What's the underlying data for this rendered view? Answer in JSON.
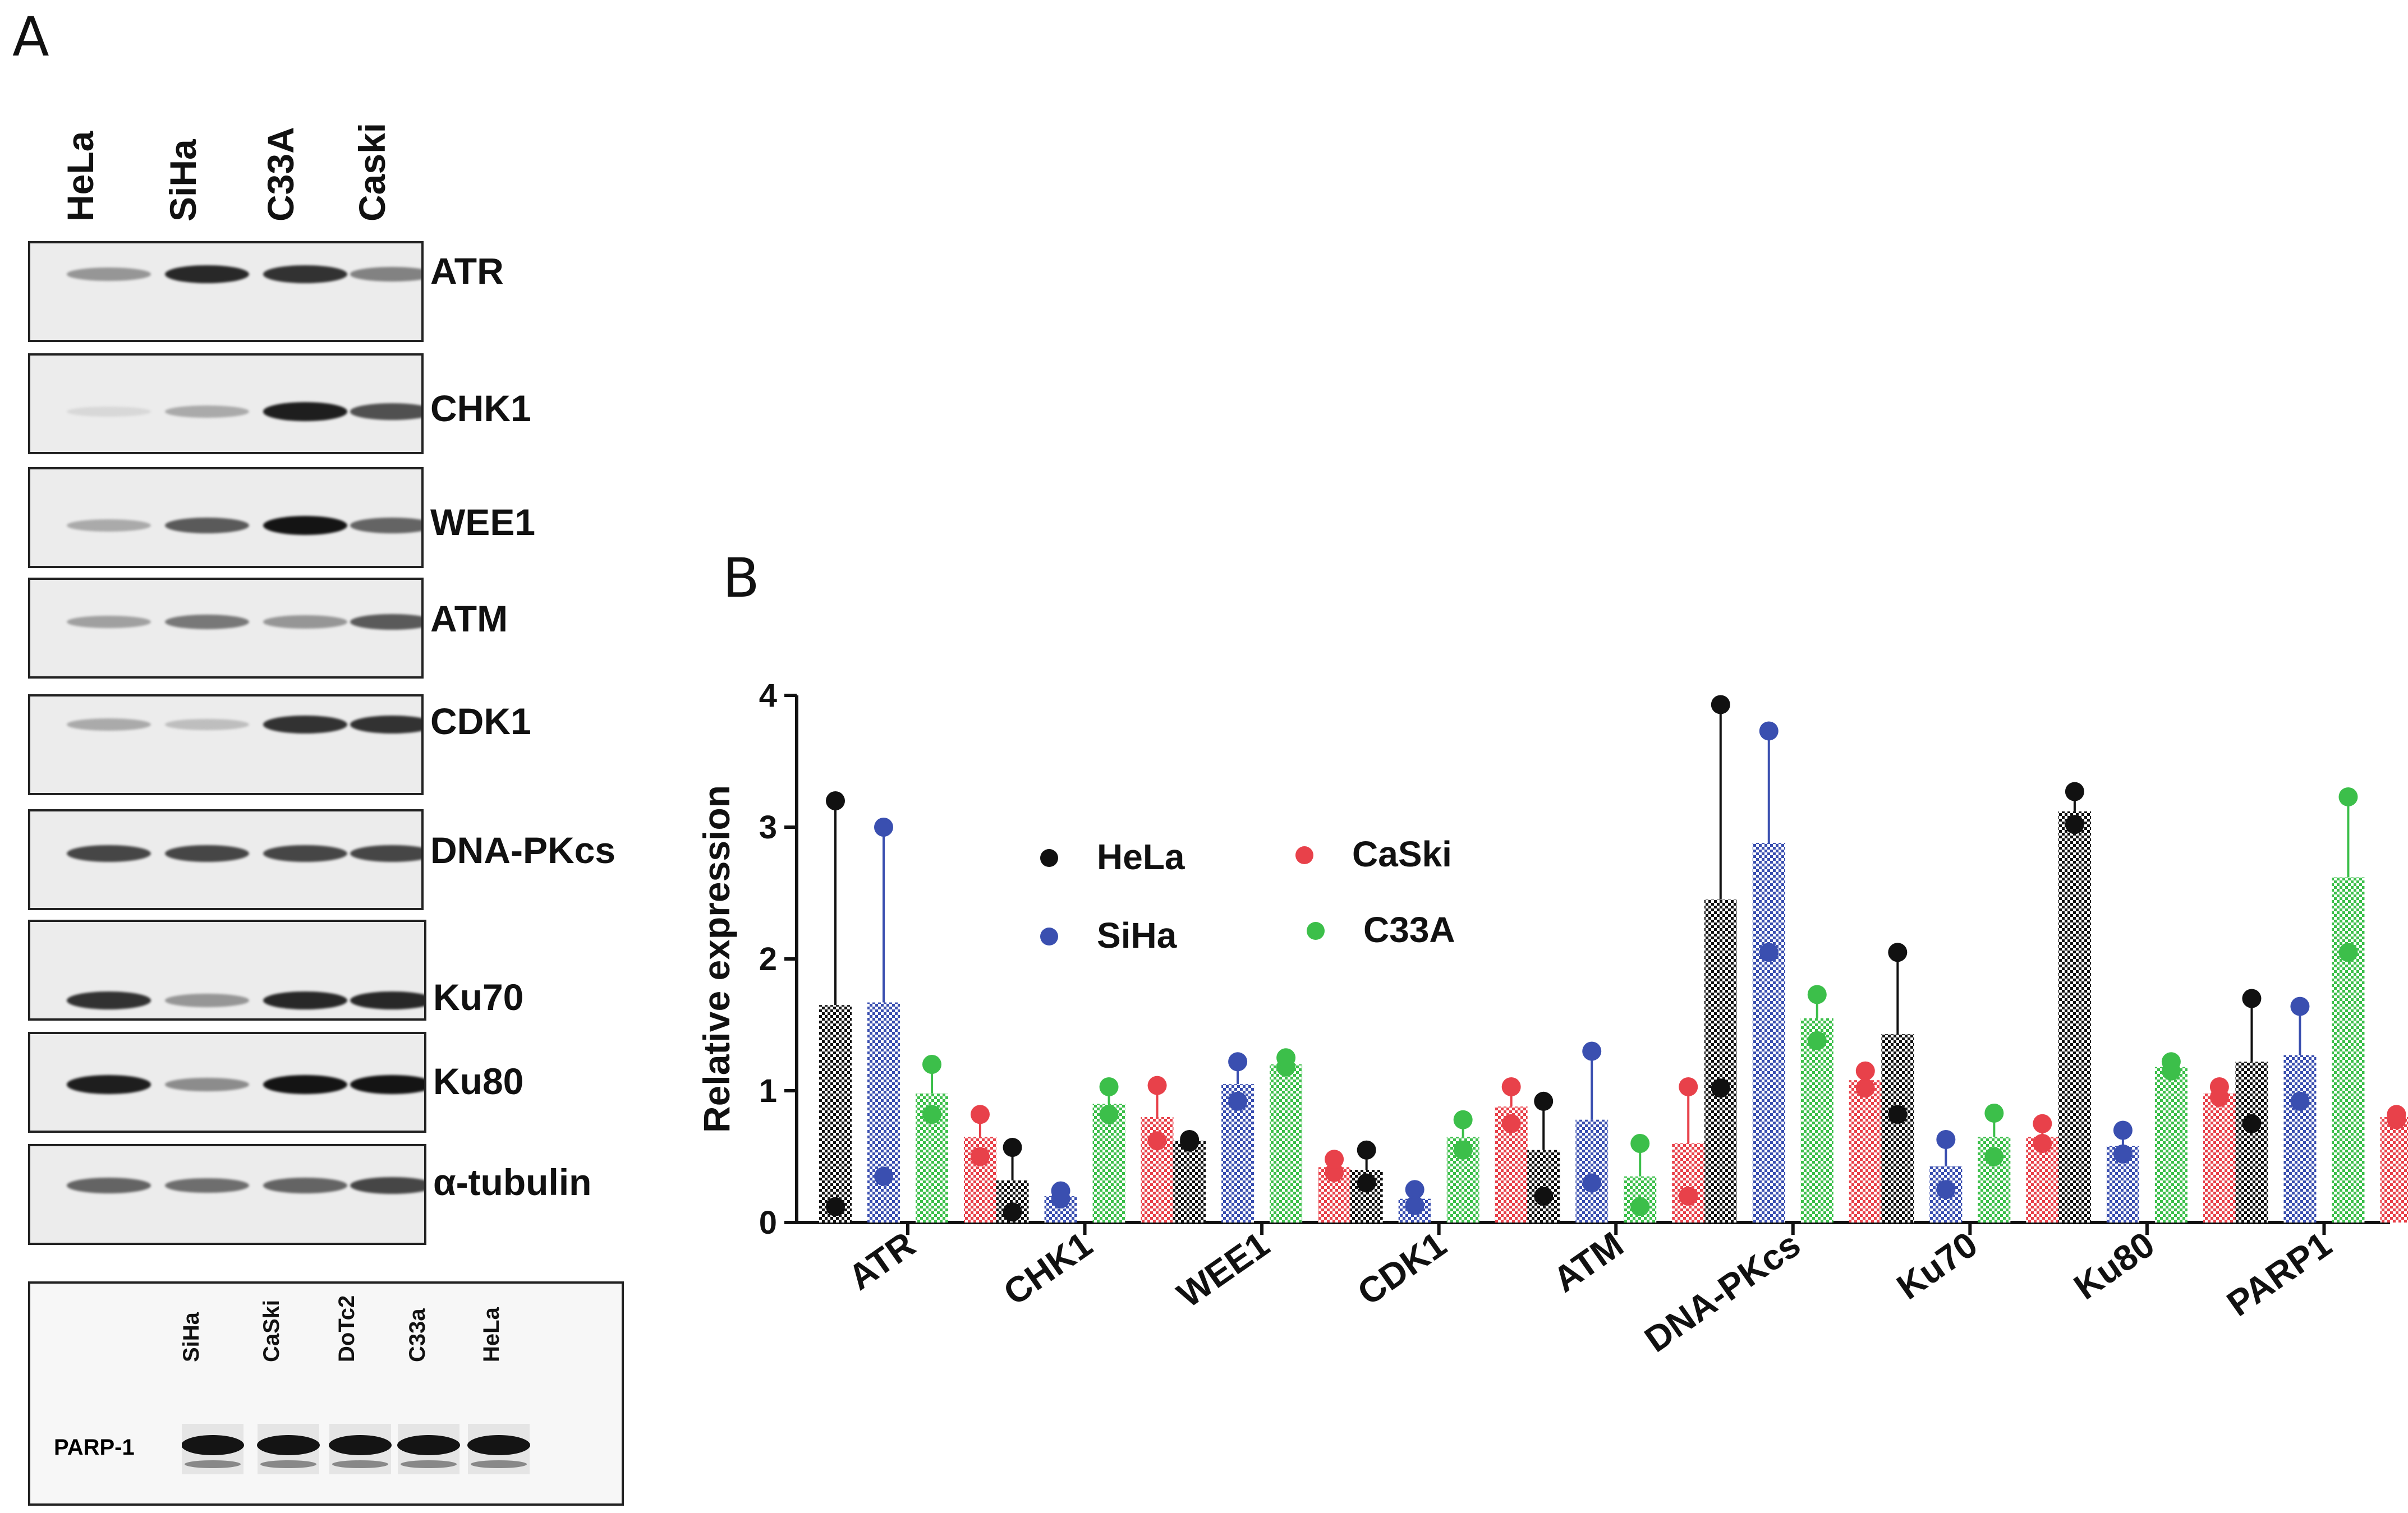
{
  "panel_a": {
    "letter": "A",
    "lanes": [
      "HeLa",
      "SiHa",
      "C33A",
      "Caski"
    ],
    "blots": [
      {
        "label": "ATR",
        "band_intensity": [
          0.35,
          0.9,
          0.85,
          0.45
        ]
      },
      {
        "label": "CHK1",
        "band_intensity": [
          0.02,
          0.25,
          0.95,
          0.7
        ]
      },
      {
        "label": "WEE1",
        "band_intensity": [
          0.25,
          0.65,
          1.0,
          0.6
        ]
      },
      {
        "label": "ATM",
        "band_intensity": [
          0.3,
          0.5,
          0.35,
          0.65
        ]
      },
      {
        "label": "CDK1",
        "band_intensity": [
          0.25,
          0.15,
          0.85,
          0.85
        ]
      },
      {
        "label": "DNA-PKcs",
        "band_intensity": [
          0.75,
          0.75,
          0.75,
          0.75
        ]
      },
      {
        "label": "Ku70",
        "band_intensity": [
          0.85,
          0.35,
          0.9,
          0.9
        ]
      },
      {
        "label": "Ku80",
        "band_intensity": [
          0.95,
          0.4,
          1.0,
          1.0
        ]
      },
      {
        "label": "α-tubulin",
        "band_intensity": [
          0.6,
          0.55,
          0.6,
          0.75
        ]
      }
    ],
    "parp_blot": {
      "label": "PARP-1",
      "lanes": [
        "SiHa",
        "CaSki",
        "DoTc2",
        "C33a",
        "HeLa"
      ]
    }
  },
  "panel_b": {
    "letter": "B",
    "chart_data": {
      "type": "bar",
      "ylabel": "Relative expression",
      "ylim": [
        0,
        4
      ],
      "yticks": [
        "0",
        "1",
        "2",
        "3",
        "4"
      ],
      "categories": [
        "ATR",
        "CHK1",
        "WEE1",
        "CDK1",
        "ATM",
        "DNA-PKcs",
        "Ku70",
        "Ku80",
        "PARP1"
      ],
      "legend": [
        {
          "name": "HeLa",
          "color": "#111111"
        },
        {
          "name": "CaSki",
          "color": "#e8414a"
        },
        {
          "name": "SiHa",
          "color": "#3a4fb0"
        },
        {
          "name": "C33A",
          "color": "#3cbf4a"
        }
      ],
      "series": [
        {
          "name": "HeLa",
          "color": "#111111",
          "values": [
            1.65,
            0.32,
            0.62,
            0.4,
            0.55,
            2.45,
            1.43,
            3.12,
            1.22
          ],
          "err_high": [
            3.2,
            0.57,
            0.64,
            0.55,
            0.92,
            3.93,
            2.05,
            3.27,
            1.7
          ],
          "points": [
            [
              0.12,
              3.2
            ],
            [
              0.08,
              0.57
            ],
            [
              0.61,
              0.63
            ],
            [
              0.3,
              0.55
            ],
            [
              0.2,
              0.92
            ],
            [
              1.02,
              3.93
            ],
            [
              0.82,
              2.05
            ],
            [
              3.02,
              3.27
            ],
            [
              0.75,
              1.7
            ]
          ]
        },
        {
          "name": "SiHa",
          "color": "#3a4fb0",
          "values": [
            1.67,
            0.2,
            1.05,
            0.18,
            0.78,
            2.88,
            0.43,
            0.58,
            1.27
          ],
          "err_high": [
            3.0,
            0.24,
            1.22,
            0.25,
            1.3,
            3.73,
            0.63,
            0.7,
            1.64
          ],
          "points": [
            [
              0.35,
              3.0
            ],
            [
              0.18,
              0.24
            ],
            [
              0.92,
              1.22
            ],
            [
              0.13,
              0.25
            ],
            [
              0.3,
              1.3
            ],
            [
              2.05,
              3.73
            ],
            [
              0.25,
              0.63
            ],
            [
              0.52,
              0.7
            ],
            [
              0.92,
              1.64
            ]
          ]
        },
        {
          "name": "C33A",
          "color": "#3cbf4a",
          "values": [
            0.98,
            0.9,
            1.2,
            0.65,
            0.35,
            1.55,
            0.65,
            1.18,
            2.62
          ],
          "err_high": [
            1.2,
            1.03,
            1.25,
            0.78,
            0.6,
            1.73,
            0.83,
            1.22,
            3.23
          ],
          "points": [
            [
              0.82,
              1.2
            ],
            [
              0.82,
              1.03
            ],
            [
              1.18,
              1.25
            ],
            [
              0.55,
              0.78
            ],
            [
              0.12,
              0.6
            ],
            [
              1.38,
              1.73
            ],
            [
              0.5,
              0.83
            ],
            [
              1.15,
              1.22
            ],
            [
              2.05,
              3.23
            ]
          ]
        },
        {
          "name": "CaSki",
          "color": "#e8414a",
          "values": [
            0.65,
            0.8,
            0.42,
            0.88,
            0.6,
            1.08,
            0.65,
            0.98,
            0.8
          ],
          "err_high": [
            0.82,
            1.04,
            0.48,
            1.03,
            1.03,
            1.15,
            0.75,
            1.03,
            0.82
          ],
          "points": [
            [
              0.5,
              0.82
            ],
            [
              0.62,
              1.04
            ],
            [
              0.38,
              0.48
            ],
            [
              0.75,
              1.03
            ],
            [
              0.2,
              1.03
            ],
            [
              1.02,
              1.15
            ],
            [
              0.6,
              0.75
            ],
            [
              0.95,
              1.03
            ],
            [
              0.78,
              0.82
            ]
          ]
        }
      ]
    }
  }
}
